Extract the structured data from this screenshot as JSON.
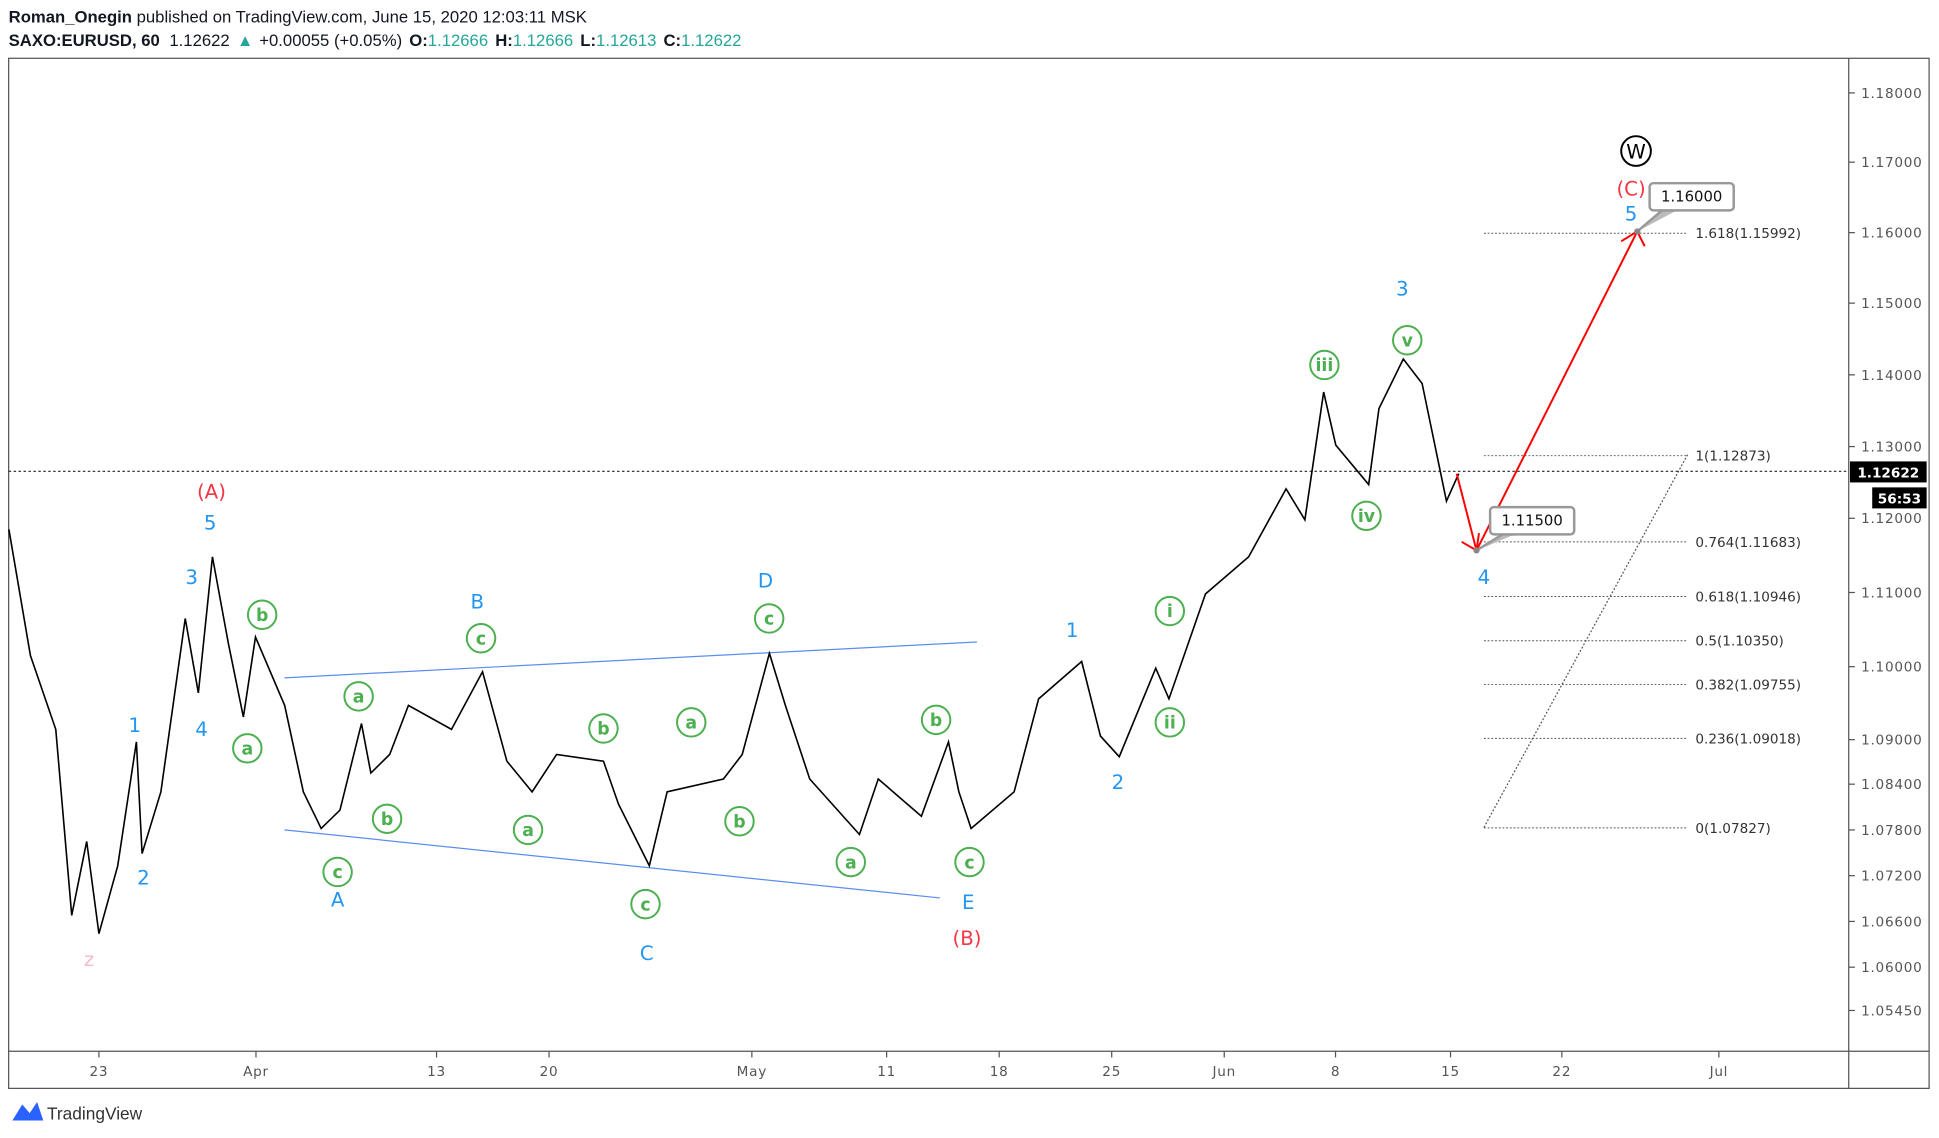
{
  "header": {
    "author": "Roman_Onegin",
    "published": " published on TradingView.com, June 15, 2020 12:03:11 MSK",
    "symbol": "SAXO:EURUSD, 60",
    "last": "1.12622",
    "change_icon": "triangle-up-icon",
    "change": "+0.00055 (+0.05%)",
    "o_label": "O:",
    "o": "1.12666",
    "h_label": "H:",
    "h": "1.12666",
    "l_label": "L:",
    "l": "1.12613",
    "c_label": "C:",
    "c": "1.12622"
  },
  "price_axis": {
    "ticks": [
      "1.18000",
      "1.17000",
      "1.16000",
      "1.15000",
      "1.14000",
      "1.13000",
      "1.12000",
      "1.11000",
      "1.10000",
      "1.09000",
      "1.08400",
      "1.07800",
      "1.07200",
      "1.06600",
      "1.06000",
      "1.05450"
    ],
    "current_price": "1.12622",
    "countdown": "56:53"
  },
  "time_axis": {
    "ticks": [
      "23",
      "Apr",
      "13",
      "20",
      "May",
      "11",
      "18",
      "25",
      "Jun",
      "8",
      "15",
      "22",
      "Jul"
    ]
  },
  "colors": {
    "up": "#26a69a",
    "wave_blue": "#2196f3",
    "wave_red": "#f23645",
    "wave_green": "#4caf50",
    "fib": "#555555",
    "arrow": "#ff0000",
    "channel": "#5b8def"
  },
  "chart_data": {
    "type": "line",
    "series": [
      {
        "x": [
          "2020-03-17 00",
          "2020-03-17 23",
          "2020-03-19 02",
          "2020-03-19 19",
          "2020-03-20 11",
          "2020-03-23 00",
          "2020-03-23 20",
          "2020-03-24 16",
          "2020-03-24 22",
          "2020-03-25 18",
          "2020-03-26 20",
          "2020-03-27 10",
          "2020-03-30 01",
          "2020-03-30 18",
          "2020-03-31 10",
          "2020-03-31 23",
          "2020-04-02 06",
          "2020-04-03 02",
          "2020-04-03 21",
          "2020-04-06 17",
          "2020-04-07 16",
          "2020-04-08 02",
          "2020-04-08 22",
          "2020-04-09 18",
          "2020-04-13 16",
          "2020-04-15 01",
          "2020-04-16 03",
          "2020-04-17 06",
          "2020-04-20 08",
          "2020-04-22 10",
          "2020-04-23 02",
          "2020-04-24 11",
          "2020-04-27 06",
          "2020-04-29 18",
          "2020-04-30 14",
          "2020-05-01 19",
          "2020-05-04 12",
          "2020-05-05 14",
          "2020-05-07 19",
          "2020-05-08 15",
          "2020-05-12 13",
          "2020-05-13 18",
          "2020-05-14 05",
          "2020-05-14 18",
          "2020-05-18 16",
          "2020-05-19 18",
          "2020-05-21 16",
          "2020-05-22 12",
          "2020-05-25 08",
          "2020-05-26 23",
          "2020-05-27 13",
          "2020-05-29 04",
          "2020-06-02 02",
          "2020-06-03 18",
          "2020-06-04 14",
          "2020-06-05 10",
          "2020-06-05 23",
          "2020-06-09 10",
          "2020-06-09 21",
          "2020-06-10 23",
          "2020-06-11 19",
          "2020-06-12 21",
          "2020-06-15 10"
        ],
        "y": [
          1.1185,
          1.1015,
          1.0914,
          1.0668,
          1.0765,
          1.0644,
          1.0733,
          1.0897,
          1.0749,
          1.083,
          1.1065,
          1.0964,
          1.1148,
          1.1032,
          1.0931,
          1.104,
          1.0947,
          1.083,
          1.0782,
          1.0806,
          1.0922,
          1.0855,
          1.088,
          1.0947,
          1.0914,
          1.0993,
          1.0871,
          1.083,
          1.088,
          1.0871,
          1.0814,
          1.0733,
          1.083,
          1.0847,
          1.088,
          1.1018,
          1.0947,
          1.0847,
          1.0774,
          1.0847,
          1.0798,
          1.0897,
          1.083,
          1.0782,
          1.083,
          1.0956,
          1.1007,
          1.0905,
          1.0877,
          1.0998,
          1.0956,
          1.1098,
          1.1148,
          1.1241,
          1.1198,
          1.1376,
          1.1302,
          1.1247,
          1.1353,
          1.1422,
          1.1388,
          1.1224,
          1.12622
        ]
      }
    ],
    "fib_levels": [
      {
        "ratio": 1.618,
        "price": 1.15992,
        "label": "1.618(1.15992)"
      },
      {
        "ratio": 1,
        "price": 1.12873,
        "label": "1(1.12873)"
      },
      {
        "ratio": 0.764,
        "price": 1.11683,
        "label": "0.764(1.11683)"
      },
      {
        "ratio": 0.618,
        "price": 1.10946,
        "label": "0.618(1.10946)"
      },
      {
        "ratio": 0.5,
        "price": 1.1035,
        "label": "0.5(1.10350)"
      },
      {
        "ratio": 0.382,
        "price": 1.09755,
        "label": "0.382(1.09755)"
      },
      {
        "ratio": 0.236,
        "price": 1.09018,
        "label": "0.236(1.09018)"
      },
      {
        "ratio": 0,
        "price": 1.07827,
        "label": "0(1.07827)"
      }
    ],
    "targets": [
      {
        "label": "1.11500"
      },
      {
        "label": "1.16000"
      }
    ],
    "waves": {
      "red": [
        "(A)",
        "(B)",
        "(C)"
      ],
      "blue": [
        "5",
        "3",
        "1",
        "4",
        "2",
        "B",
        "A",
        "D",
        "C",
        "E",
        "1",
        "2",
        "3",
        "4",
        "5"
      ],
      "pink": [
        "z"
      ],
      "green": [
        "b",
        "a",
        "a",
        "c",
        "b",
        "c",
        "a",
        "b",
        "c",
        "a",
        "b",
        "c",
        "a",
        "b",
        "c",
        "i",
        "ii",
        "iii",
        "v",
        "iv"
      ],
      "black": [
        "W"
      ]
    }
  },
  "footer": {
    "logo_icon": "tradingview-logo-icon",
    "brand": "TradingView"
  }
}
